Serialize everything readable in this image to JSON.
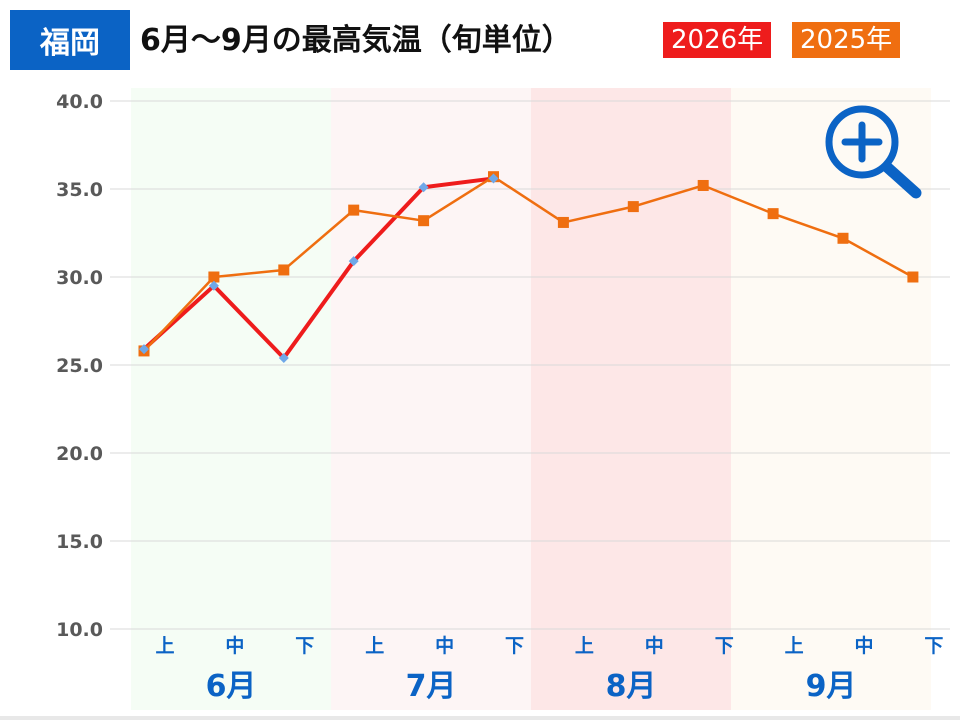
{
  "header": {
    "region": "福岡",
    "title": "6月～9月の最高気温（旬単位）",
    "legend": [
      {
        "label": "2026年",
        "color": "#ee1c1c"
      },
      {
        "label": "2025年",
        "color": "#ef6e10"
      }
    ]
  },
  "chart_data": {
    "type": "line",
    "title": "6月～9月の最高気温（旬単位）",
    "xlabel": "",
    "ylabel": "",
    "ylim": [
      10,
      40
    ],
    "yticks": [
      "40.0",
      "35.0",
      "30.0",
      "25.0",
      "20.0",
      "15.0",
      "10.0"
    ],
    "grid": true,
    "legend_position": "top-right",
    "x": [
      "上",
      "中",
      "下",
      "上",
      "中",
      "下",
      "上",
      "中",
      "下",
      "上",
      "中",
      "下"
    ],
    "months": [
      {
        "label": "6月",
        "bg": "#f5fdf5"
      },
      {
        "label": "7月",
        "bg": "#fdf5f5"
      },
      {
        "label": "8月",
        "bg": "#fde7e7"
      },
      {
        "label": "9月",
        "bg": "#fefaf4"
      }
    ],
    "series": [
      {
        "name": "2026年",
        "color": "#ee1c1c",
        "marker_color": "#6fa8e8",
        "values": [
          25.9,
          29.5,
          25.4,
          30.9,
          35.1,
          35.6,
          null,
          null,
          null,
          null,
          null,
          null
        ]
      },
      {
        "name": "2025年",
        "color": "#ef6e10",
        "values": [
          25.8,
          30.0,
          30.4,
          33.8,
          33.2,
          35.7,
          33.1,
          34.0,
          35.2,
          33.6,
          32.2,
          30.0
        ]
      }
    ]
  },
  "zoom": {
    "icon": "zoom-in-icon",
    "color": "#0b63c5"
  }
}
